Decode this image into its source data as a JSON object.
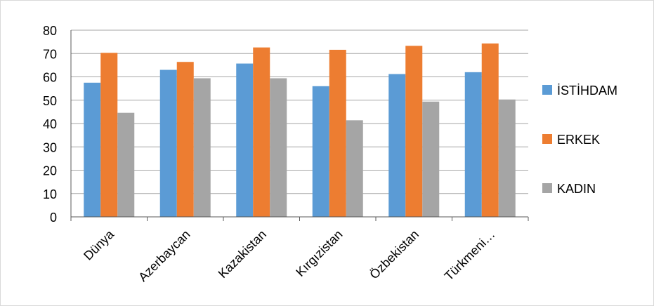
{
  "chart_data": {
    "type": "bar",
    "title": "",
    "xlabel": "",
    "ylabel": "",
    "ylim": [
      0,
      80
    ],
    "yticks": [
      0,
      10,
      20,
      30,
      40,
      50,
      60,
      70,
      80
    ],
    "grid": true,
    "legend_position": "right",
    "categories": [
      "Dünya",
      "Azerbaycan",
      "Kazakistan",
      "Kırgızistan",
      "Özbekistan",
      "Türkmeni…"
    ],
    "series": [
      {
        "name": "İSTİHDAM",
        "color": "#5B9BD5",
        "values": [
          57.5,
          63,
          65.7,
          56,
          61.2,
          62
        ]
      },
      {
        "name": "ERKEK",
        "color": "#ED7D31",
        "values": [
          70.3,
          66.4,
          72.6,
          71.6,
          73.3,
          74.3
        ]
      },
      {
        "name": "KADIN",
        "color": "#A5A5A5",
        "values": [
          44.6,
          59.4,
          59.4,
          41.4,
          49.4,
          50.3
        ]
      }
    ]
  }
}
